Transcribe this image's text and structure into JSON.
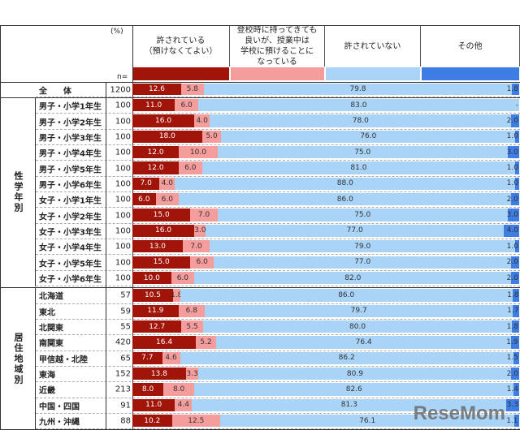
{
  "chart_data": {
    "type": "bar",
    "orientation": "horizontal-stacked-100",
    "unit_label": "(%)",
    "n_label": "n=",
    "series": [
      {
        "name": "許されている\n（預けなくてよい）",
        "color": "#a01409"
      },
      {
        "name": "登校時に持ってきても\n良いが、授業中は\n学校に預けることに\nなっている",
        "color": "#f59c9c"
      },
      {
        "name": "許されていない",
        "color": "#a9d3f7"
      },
      {
        "name": "その他",
        "color": "#3d7de4"
      }
    ],
    "total": {
      "label": "全　　体",
      "n": "1200",
      "values": [
        "12.6",
        "5.8",
        "79.8",
        "1.8"
      ]
    },
    "groups": [
      {
        "name": "性学年別",
        "rows": [
          {
            "label": "男子・小学1年生",
            "n": "100",
            "values": [
              "11.0",
              "6.0",
              "83.0",
              "-"
            ]
          },
          {
            "label": "男子・小学2年生",
            "n": "100",
            "values": [
              "16.0",
              "4.0",
              "78.0",
              "2.0"
            ]
          },
          {
            "label": "男子・小学3年生",
            "n": "100",
            "values": [
              "18.0",
              "5.0",
              "76.0",
              "1.0"
            ]
          },
          {
            "label": "男子・小学4年生",
            "n": "100",
            "values": [
              "12.0",
              "10.0",
              "75.0",
              "3.0"
            ]
          },
          {
            "label": "男子・小学5年生",
            "n": "100",
            "values": [
              "12.0",
              "6.0",
              "81.0",
              "1.0"
            ]
          },
          {
            "label": "男子・小学6年生",
            "n": "100",
            "values": [
              "7.0",
              "4.0",
              "88.0",
              "1.0"
            ]
          },
          {
            "label": "女子・小学1年生",
            "n": "100",
            "values": [
              "6.0",
              "6.0",
              "86.0",
              "2.0"
            ]
          },
          {
            "label": "女子・小学2年生",
            "n": "100",
            "values": [
              "15.0",
              "7.0",
              "75.0",
              "3.0"
            ]
          },
          {
            "label": "女子・小学3年生",
            "n": "100",
            "values": [
              "16.0",
              "3.0",
              "77.0",
              "4.0"
            ]
          },
          {
            "label": "女子・小学4年生",
            "n": "100",
            "values": [
              "13.0",
              "7.0",
              "79.0",
              "1.0"
            ]
          },
          {
            "label": "女子・小学5年生",
            "n": "100",
            "values": [
              "15.0",
              "6.0",
              "77.0",
              "2.0"
            ]
          },
          {
            "label": "女子・小学6年生",
            "n": "100",
            "values": [
              "10.0",
              "6.0",
              "82.0",
              "2.0"
            ]
          }
        ]
      },
      {
        "name": "居住地域別",
        "rows": [
          {
            "label": "北海道",
            "n": "57",
            "values": [
              "10.5",
              "1.8",
              "86.0",
              "1.8"
            ]
          },
          {
            "label": "東北",
            "n": "59",
            "values": [
              "11.9",
              "6.8",
              "79.7",
              "1.7"
            ]
          },
          {
            "label": "北関東",
            "n": "55",
            "values": [
              "12.7",
              "5.5",
              "80.0",
              "1.8"
            ]
          },
          {
            "label": "南関東",
            "n": "420",
            "values": [
              "16.4",
              "5.2",
              "76.4",
              "1.9"
            ]
          },
          {
            "label": "甲信越・北陸",
            "n": "65",
            "values": [
              "7.7",
              "4.6",
              "86.2",
              "1.5"
            ]
          },
          {
            "label": "東海",
            "n": "152",
            "values": [
              "13.8",
              "3.3",
              "80.9",
              "2.0"
            ]
          },
          {
            "label": "近畿",
            "n": "213",
            "values": [
              "8.0",
              "8.0",
              "82.6",
              "1.4"
            ]
          },
          {
            "label": "中国・四国",
            "n": "91",
            "values": [
              "11.0",
              "4.4",
              "81.3",
              "3.3"
            ]
          },
          {
            "label": "九州・沖縄",
            "n": "88",
            "values": [
              "10.2",
              "12.5",
              "76.1",
              "1.1"
            ]
          }
        ]
      }
    ]
  },
  "watermark": "ReseMom"
}
